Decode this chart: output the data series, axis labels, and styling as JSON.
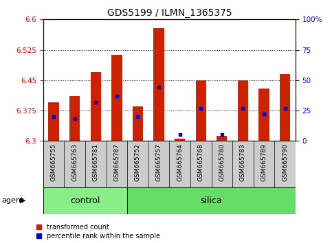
{
  "title": "GDS5199 / ILMN_1365375",
  "samples": [
    "GSM665755",
    "GSM665763",
    "GSM665781",
    "GSM665787",
    "GSM665752",
    "GSM665757",
    "GSM665764",
    "GSM665768",
    "GSM665780",
    "GSM665783",
    "GSM665789",
    "GSM665790"
  ],
  "groups": [
    "control",
    "control",
    "control",
    "control",
    "silica",
    "silica",
    "silica",
    "silica",
    "silica",
    "silica",
    "silica",
    "silica"
  ],
  "transformed_count": [
    6.395,
    6.41,
    6.47,
    6.513,
    6.385,
    6.578,
    6.305,
    6.45,
    6.312,
    6.45,
    6.43,
    6.465
  ],
  "percentile_rank": [
    20,
    18,
    32,
    37,
    20,
    44,
    5,
    27,
    5,
    27,
    22,
    27
  ],
  "ylim_left": [
    6.3,
    6.6
  ],
  "ylim_right": [
    0,
    100
  ],
  "yticks_left": [
    6.3,
    6.375,
    6.45,
    6.525,
    6.6
  ],
  "yticks_right": [
    0,
    25,
    50,
    75,
    100
  ],
  "ytick_labels_left": [
    "6.3",
    "6.375",
    "6.45",
    "6.525",
    "6.6"
  ],
  "ytick_labels_right": [
    "0",
    "25",
    "50",
    "75",
    "100%"
  ],
  "bar_color": "#CC2200",
  "dot_color": "#0000CC",
  "control_color": "#88EE88",
  "silica_color": "#66DD66",
  "bar_bottom": 6.3,
  "legend_items": [
    "transformed count",
    "percentile rank within the sample"
  ],
  "legend_colors": [
    "#CC2200",
    "#0000CC"
  ],
  "tick_fontsize": 7.5,
  "title_fontsize": 10,
  "label_fontsize": 6.5,
  "group_fontsize": 9
}
